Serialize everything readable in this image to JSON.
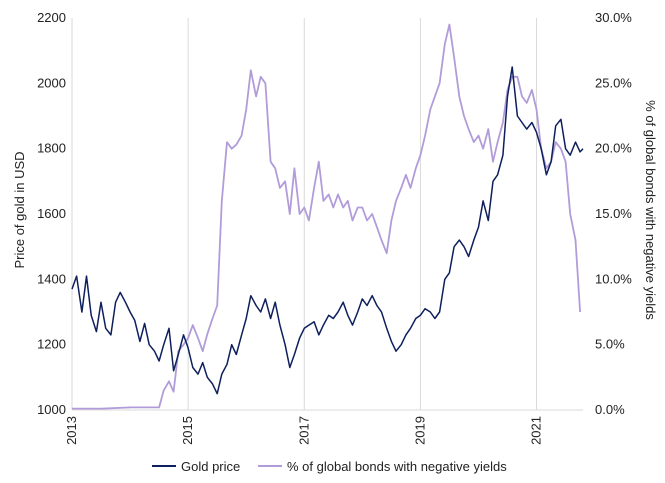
{
  "chart_data": {
    "type": "line",
    "title": "",
    "xlabel": "",
    "ylabel_left": "Price of gold in USD",
    "ylabel_right": "% of global bonds with negative yields",
    "x_ticks": [
      "2013",
      "2015",
      "2017",
      "2019",
      "2021"
    ],
    "y_left_ticks": [
      "1000",
      "1200",
      "1400",
      "1600",
      "1800",
      "2000",
      "2200"
    ],
    "y_right_ticks": [
      "0.0%",
      "5.0%",
      "10.0%",
      "15.0%",
      "20.0%",
      "25.0%",
      "30.0%"
    ],
    "xlim": [
      2013.0,
      2021.8
    ],
    "ylim_left": [
      1000,
      2200
    ],
    "ylim_right": [
      0,
      30
    ],
    "grid": "vertical",
    "legend": "bottom",
    "series": [
      {
        "name": "Gold price",
        "axis": "left",
        "color": "#0d1f5c",
        "points": [
          [
            2013.0,
            1370
          ],
          [
            2013.08,
            1410
          ],
          [
            2013.17,
            1300
          ],
          [
            2013.25,
            1410
          ],
          [
            2013.33,
            1290
          ],
          [
            2013.42,
            1240
          ],
          [
            2013.5,
            1330
          ],
          [
            2013.58,
            1250
          ],
          [
            2013.67,
            1230
          ],
          [
            2013.75,
            1330
          ],
          [
            2013.83,
            1360
          ],
          [
            2013.92,
            1330
          ],
          [
            2014.0,
            1300
          ],
          [
            2014.08,
            1275
          ],
          [
            2014.17,
            1210
          ],
          [
            2014.25,
            1265
          ],
          [
            2014.33,
            1200
          ],
          [
            2014.42,
            1180
          ],
          [
            2014.5,
            1150
          ],
          [
            2014.58,
            1200
          ],
          [
            2014.67,
            1250
          ],
          [
            2014.75,
            1120
          ],
          [
            2014.83,
            1170
          ],
          [
            2014.92,
            1230
          ],
          [
            2015.0,
            1190
          ],
          [
            2015.08,
            1130
          ],
          [
            2015.17,
            1110
          ],
          [
            2015.25,
            1145
          ],
          [
            2015.33,
            1100
          ],
          [
            2015.42,
            1080
          ],
          [
            2015.5,
            1050
          ],
          [
            2015.58,
            1110
          ],
          [
            2015.67,
            1140
          ],
          [
            2015.75,
            1200
          ],
          [
            2015.83,
            1170
          ],
          [
            2015.92,
            1230
          ],
          [
            2016.0,
            1280
          ],
          [
            2016.08,
            1350
          ],
          [
            2016.17,
            1320
          ],
          [
            2016.25,
            1300
          ],
          [
            2016.33,
            1340
          ],
          [
            2016.42,
            1280
          ],
          [
            2016.5,
            1330
          ],
          [
            2016.58,
            1260
          ],
          [
            2016.67,
            1200
          ],
          [
            2016.75,
            1130
          ],
          [
            2016.83,
            1170
          ],
          [
            2016.92,
            1220
          ],
          [
            2017.0,
            1250
          ],
          [
            2017.08,
            1260
          ],
          [
            2017.17,
            1270
          ],
          [
            2017.25,
            1230
          ],
          [
            2017.33,
            1260
          ],
          [
            2017.42,
            1290
          ],
          [
            2017.5,
            1280
          ],
          [
            2017.58,
            1300
          ],
          [
            2017.67,
            1330
          ],
          [
            2017.75,
            1290
          ],
          [
            2017.83,
            1260
          ],
          [
            2017.92,
            1300
          ],
          [
            2018.0,
            1340
          ],
          [
            2018.08,
            1320
          ],
          [
            2018.17,
            1350
          ],
          [
            2018.25,
            1320
          ],
          [
            2018.33,
            1300
          ],
          [
            2018.42,
            1250
          ],
          [
            2018.5,
            1210
          ],
          [
            2018.58,
            1180
          ],
          [
            2018.67,
            1200
          ],
          [
            2018.75,
            1230
          ],
          [
            2018.83,
            1250
          ],
          [
            2018.92,
            1280
          ],
          [
            2019.0,
            1290
          ],
          [
            2019.08,
            1310
          ],
          [
            2019.17,
            1300
          ],
          [
            2019.25,
            1280
          ],
          [
            2019.33,
            1300
          ],
          [
            2019.42,
            1400
          ],
          [
            2019.5,
            1420
          ],
          [
            2019.58,
            1500
          ],
          [
            2019.67,
            1520
          ],
          [
            2019.75,
            1500
          ],
          [
            2019.83,
            1470
          ],
          [
            2019.92,
            1520
          ],
          [
            2020.0,
            1560
          ],
          [
            2020.08,
            1640
          ],
          [
            2020.17,
            1580
          ],
          [
            2020.25,
            1700
          ],
          [
            2020.33,
            1720
          ],
          [
            2020.42,
            1780
          ],
          [
            2020.5,
            1960
          ],
          [
            2020.58,
            2050
          ],
          [
            2020.67,
            1900
          ],
          [
            2020.75,
            1880
          ],
          [
            2020.83,
            1860
          ],
          [
            2020.92,
            1880
          ],
          [
            2021.0,
            1850
          ],
          [
            2021.08,
            1800
          ],
          [
            2021.17,
            1720
          ],
          [
            2021.25,
            1760
          ],
          [
            2021.33,
            1870
          ],
          [
            2021.42,
            1890
          ],
          [
            2021.5,
            1800
          ],
          [
            2021.58,
            1780
          ],
          [
            2021.67,
            1820
          ],
          [
            2021.75,
            1790
          ],
          [
            2021.8,
            1800
          ]
        ]
      },
      {
        "name": "% of global bonds with negative yields",
        "axis": "right",
        "color": "#b19cd9",
        "points": [
          [
            2013.0,
            0.1
          ],
          [
            2013.5,
            0.1
          ],
          [
            2014.0,
            0.2
          ],
          [
            2014.5,
            0.2
          ],
          [
            2014.58,
            1.5
          ],
          [
            2014.67,
            2.2
          ],
          [
            2014.75,
            1.4
          ],
          [
            2014.83,
            4.5
          ],
          [
            2014.92,
            5.0
          ],
          [
            2015.0,
            5.5
          ],
          [
            2015.08,
            6.5
          ],
          [
            2015.17,
            5.5
          ],
          [
            2015.25,
            4.5
          ],
          [
            2015.33,
            5.8
          ],
          [
            2015.42,
            7.0
          ],
          [
            2015.5,
            8.0
          ],
          [
            2015.58,
            16.0
          ],
          [
            2015.67,
            20.5
          ],
          [
            2015.75,
            20.0
          ],
          [
            2015.83,
            20.3
          ],
          [
            2015.92,
            21.0
          ],
          [
            2016.0,
            23.0
          ],
          [
            2016.08,
            26.0
          ],
          [
            2016.17,
            24.0
          ],
          [
            2016.25,
            25.5
          ],
          [
            2016.33,
            25.0
          ],
          [
            2016.42,
            19.0
          ],
          [
            2016.5,
            18.5
          ],
          [
            2016.58,
            17.0
          ],
          [
            2016.67,
            17.5
          ],
          [
            2016.75,
            15.0
          ],
          [
            2016.83,
            18.5
          ],
          [
            2016.92,
            15.0
          ],
          [
            2017.0,
            15.5
          ],
          [
            2017.08,
            14.5
          ],
          [
            2017.17,
            17.0
          ],
          [
            2017.25,
            19.0
          ],
          [
            2017.33,
            16.0
          ],
          [
            2017.42,
            16.5
          ],
          [
            2017.5,
            15.5
          ],
          [
            2017.58,
            16.5
          ],
          [
            2017.67,
            15.5
          ],
          [
            2017.75,
            16.0
          ],
          [
            2017.83,
            14.5
          ],
          [
            2017.92,
            15.5
          ],
          [
            2018.0,
            15.5
          ],
          [
            2018.08,
            14.5
          ],
          [
            2018.17,
            15.0
          ],
          [
            2018.25,
            14.0
          ],
          [
            2018.33,
            13.0
          ],
          [
            2018.42,
            12.0
          ],
          [
            2018.5,
            14.5
          ],
          [
            2018.58,
            16.0
          ],
          [
            2018.67,
            17.0
          ],
          [
            2018.75,
            18.0
          ],
          [
            2018.83,
            17.0
          ],
          [
            2018.92,
            18.5
          ],
          [
            2019.0,
            19.5
          ],
          [
            2019.08,
            21.0
          ],
          [
            2019.17,
            23.0
          ],
          [
            2019.25,
            24.0
          ],
          [
            2019.33,
            25.0
          ],
          [
            2019.42,
            28.0
          ],
          [
            2019.5,
            29.5
          ],
          [
            2019.58,
            27.0
          ],
          [
            2019.67,
            24.0
          ],
          [
            2019.75,
            22.5
          ],
          [
            2019.83,
            21.5
          ],
          [
            2019.92,
            20.5
          ],
          [
            2020.0,
            21.0
          ],
          [
            2020.08,
            20.0
          ],
          [
            2020.17,
            21.5
          ],
          [
            2020.25,
            19.0
          ],
          [
            2020.33,
            20.5
          ],
          [
            2020.42,
            22.0
          ],
          [
            2020.5,
            24.5
          ],
          [
            2020.58,
            25.5
          ],
          [
            2020.67,
            25.5
          ],
          [
            2020.75,
            24.0
          ],
          [
            2020.83,
            23.5
          ],
          [
            2020.92,
            24.5
          ],
          [
            2021.0,
            23.0
          ],
          [
            2021.08,
            20.0
          ],
          [
            2021.17,
            18.5
          ],
          [
            2021.25,
            19.0
          ],
          [
            2021.33,
            20.5
          ],
          [
            2021.42,
            20.0
          ],
          [
            2021.5,
            19.0
          ],
          [
            2021.58,
            15.0
          ],
          [
            2021.67,
            13.0
          ],
          [
            2021.75,
            7.5
          ]
        ]
      }
    ]
  }
}
